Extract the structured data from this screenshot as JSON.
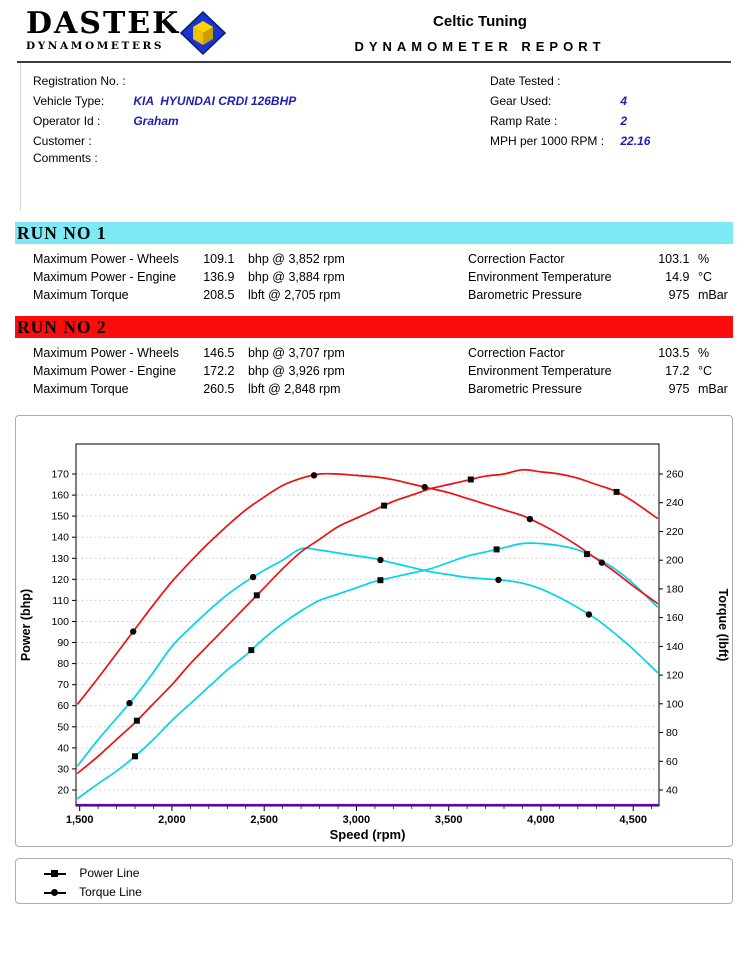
{
  "header": {
    "logo_title": "DASTEK",
    "logo_subtitle": "DYNAMOMETERS",
    "logo_icon": "dastek-cube-logo",
    "logo_colors": {
      "blue": "#1a35cf",
      "blue_dark": "#0a1878",
      "yellow": "#ffd400",
      "yellow_mid": "#eec200",
      "yellow_dark": "#c79f00"
    },
    "company_name": "Celtic Tuning",
    "report_title": "DYNAMOMETER REPORT"
  },
  "info": {
    "value_color": "#1f1fb4",
    "left": [
      {
        "label": "Registration No. :",
        "value": ""
      },
      {
        "label": "Vehicle Type:",
        "value": "KIA  HYUNDAI CRDI 126BHP"
      },
      {
        "label": "Operator Id :",
        "value": "Graham"
      },
      {
        "label": "Customer :",
        "value": ""
      },
      {
        "label": "Comments :",
        "value": ""
      }
    ],
    "right": [
      {
        "label": "Date Tested :",
        "value": ""
      },
      {
        "label": "Gear Used:",
        "value": "4"
      },
      {
        "label": "Ramp Rate :",
        "value": "2"
      },
      {
        "label": "MPH per 1000 RPM :",
        "value": "22.16"
      }
    ]
  },
  "runs": [
    {
      "title": "RUN NO 1",
      "bar_color": "#7ee9f4",
      "stats_left": [
        {
          "label": "Maximum Power - Wheels",
          "value": "109.1",
          "unit": "bhp @ 3,852 rpm"
        },
        {
          "label": "Maximum Power - Engine",
          "value": "136.9",
          "unit": "bhp @ 3,884 rpm"
        },
        {
          "label": "Maximum Torque",
          "value": "208.5",
          "unit": "lbft @ 2,705 rpm"
        }
      ],
      "stats_right": [
        {
          "label": "Correction Factor",
          "value": "103.1",
          "unit": "%"
        },
        {
          "label": "Environment Temperature",
          "value": "14.9",
          "unit": "°C"
        },
        {
          "label": "Barometric Pressure",
          "value": "975",
          "unit": "mBar"
        }
      ]
    },
    {
      "title": "RUN NO 2",
      "bar_color": "#fb0d0d",
      "stats_left": [
        {
          "label": "Maximum Power - Wheels",
          "value": "146.5",
          "unit": "bhp @ 3,707 rpm"
        },
        {
          "label": "Maximum Power - Engine",
          "value": "172.2",
          "unit": "bhp @ 3,926 rpm"
        },
        {
          "label": "Maximum Torque",
          "value": "260.5",
          "unit": "lbft @ 2,848 rpm"
        }
      ],
      "stats_right": [
        {
          "label": "Correction Factor",
          "value": "103.5",
          "unit": "%"
        },
        {
          "label": "Environment Temperature",
          "value": "17.2",
          "unit": "°C"
        },
        {
          "label": "Barometric Pressure",
          "value": "975",
          "unit": "mBar"
        }
      ]
    }
  ],
  "chart_data": {
    "type": "line",
    "xlabel": "Speed (rpm)",
    "ylabel_left": "Power (bhp)",
    "ylabel_right": "Torque (lbft)",
    "xlim": [
      1480,
      4640
    ],
    "x_ticks": [
      1500,
      2000,
      2500,
      3000,
      3500,
      4000,
      4500
    ],
    "x_tick_labels": [
      "1,500",
      "2,000",
      "2,500",
      "3,000",
      "3,500",
      "4,000",
      "4,500"
    ],
    "x_minor_step": 100,
    "y_left_ticks": [
      20,
      30,
      40,
      50,
      60,
      70,
      80,
      90,
      100,
      110,
      120,
      130,
      140,
      150,
      160,
      170
    ],
    "y_right_ticks": [
      40,
      60,
      80,
      100,
      120,
      140,
      160,
      180,
      200,
      220,
      240,
      260
    ],
    "grid": "horizontal-dotted",
    "legend_position": "bottom-box",
    "axis_bottom_color": "#6a00b0",
    "rpm": [
      1490,
      1600,
      1700,
      1800,
      1900,
      2000,
      2100,
      2200,
      2300,
      2400,
      2500,
      2600,
      2700,
      2800,
      2900,
      3000,
      3100,
      3200,
      3300,
      3400,
      3500,
      3600,
      3700,
      3800,
      3900,
      4000,
      4100,
      4200,
      4300,
      4400,
      4500,
      4630
    ],
    "series": [
      {
        "name": "Run 1 Power (bhp)",
        "run": 1,
        "axis": "left",
        "color": "#00d4e8",
        "marker": "square",
        "values": [
          16,
          23,
          29,
          36,
          44,
          53,
          61,
          69,
          77,
          84,
          92,
          99,
          105,
          110,
          113,
          116,
          119,
          121,
          123,
          125,
          128,
          131,
          133,
          135,
          137,
          137,
          136,
          134,
          130,
          125,
          118,
          107
        ],
        "marker_x": [
          1800,
          2430,
          3130,
          3760,
          4250
        ]
      },
      {
        "name": "Run 1 Torque (lbft)",
        "run": 1,
        "axis": "right",
        "color": "#00d4e8",
        "marker": "circle",
        "values": [
          57,
          75,
          90,
          105,
          122,
          140,
          153,
          165,
          176,
          185,
          193,
          200,
          208,
          207,
          205,
          203,
          201,
          198,
          195,
          192,
          190,
          188,
          187,
          186,
          184,
          180,
          174,
          167,
          159,
          149,
          138,
          122
        ],
        "marker_x": [
          1770,
          2440,
          3130,
          3770,
          4260
        ]
      },
      {
        "name": "Run 2 Power (bhp)",
        "run": 2,
        "axis": "left",
        "color": "#ee1010",
        "marker": "square",
        "values": [
          28,
          36,
          44,
          52,
          61,
          70,
          80,
          89,
          98,
          107,
          116,
          125,
          133,
          139,
          145,
          149,
          153,
          157,
          160,
          163,
          165,
          167,
          169,
          170,
          172,
          171,
          170,
          168,
          165,
          162,
          157,
          149
        ],
        "marker_x": [
          1810,
          2460,
          3150,
          3620,
          4410
        ]
      },
      {
        "name": "Run 2 Torque (lbft)",
        "run": 2,
        "axis": "right",
        "color": "#ee1010",
        "marker": "circle",
        "values": [
          100,
          118,
          135,
          152,
          169,
          185,
          199,
          212,
          224,
          235,
          244,
          252,
          257,
          260,
          260,
          259,
          258,
          256,
          253,
          250,
          247,
          243,
          239,
          235,
          231,
          225,
          218,
          210,
          201,
          192,
          182,
          170
        ],
        "marker_x": [
          1790,
          2770,
          3370,
          3940,
          4330
        ]
      }
    ]
  },
  "legend": {
    "items": [
      {
        "label": "Power Line",
        "marker": "square"
      },
      {
        "label": "Torque Line",
        "marker": "circle"
      }
    ]
  }
}
